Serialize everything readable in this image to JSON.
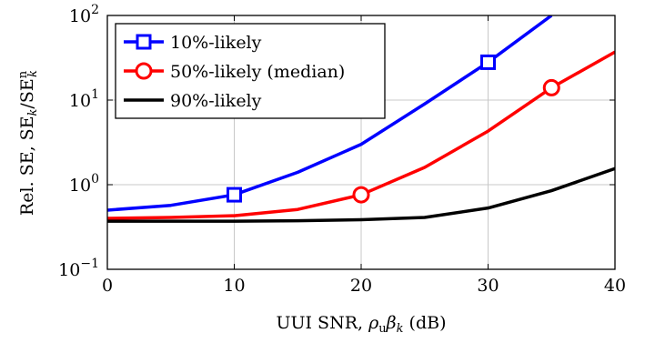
{
  "chart_data": {
    "type": "line",
    "xlabel": "UUI SNR, ρᵤβₖ (dB)",
    "ylabel": "Rel. SE, SEₖ/SEₖⁿ",
    "xlim": [
      0,
      40
    ],
    "ylim": [
      0.1,
      100
    ],
    "yscale": "log",
    "grid": true,
    "legend_position": "top-left",
    "x_ticks": [
      "0",
      "10",
      "20",
      "30",
      "40"
    ],
    "y_ticks": [
      {
        "value": 0.1,
        "base": "10",
        "exp": "−1"
      },
      {
        "value": 1,
        "base": "10",
        "exp": "0"
      },
      {
        "value": 10,
        "base": "10",
        "exp": "1"
      },
      {
        "value": 100,
        "base": "10",
        "exp": "2"
      }
    ],
    "series": [
      {
        "name": "10%-likely",
        "color": "#0000ff",
        "marker": "square",
        "x": [
          0,
          5,
          10,
          15,
          20,
          25,
          30,
          35
        ],
        "y": [
          0.5,
          0.57,
          0.76,
          1.4,
          3.0,
          9.0,
          28,
          100
        ],
        "marker_x": [
          10,
          30
        ]
      },
      {
        "name": "50%-likely (median)",
        "color": "#ff0000",
        "marker": "circle",
        "x": [
          0,
          5,
          10,
          15,
          20,
          25,
          30,
          35,
          40
        ],
        "y": [
          0.4,
          0.41,
          0.43,
          0.51,
          0.76,
          1.6,
          4.3,
          14,
          37
        ],
        "marker_x": [
          20,
          35
        ]
      },
      {
        "name": "90%-likely",
        "color": "#000000",
        "marker": "none",
        "x": [
          0,
          5,
          10,
          15,
          20,
          25,
          30,
          35,
          40
        ],
        "y": [
          0.37,
          0.37,
          0.37,
          0.375,
          0.385,
          0.41,
          0.53,
          0.85,
          1.55
        ],
        "marker_x": []
      }
    ]
  }
}
